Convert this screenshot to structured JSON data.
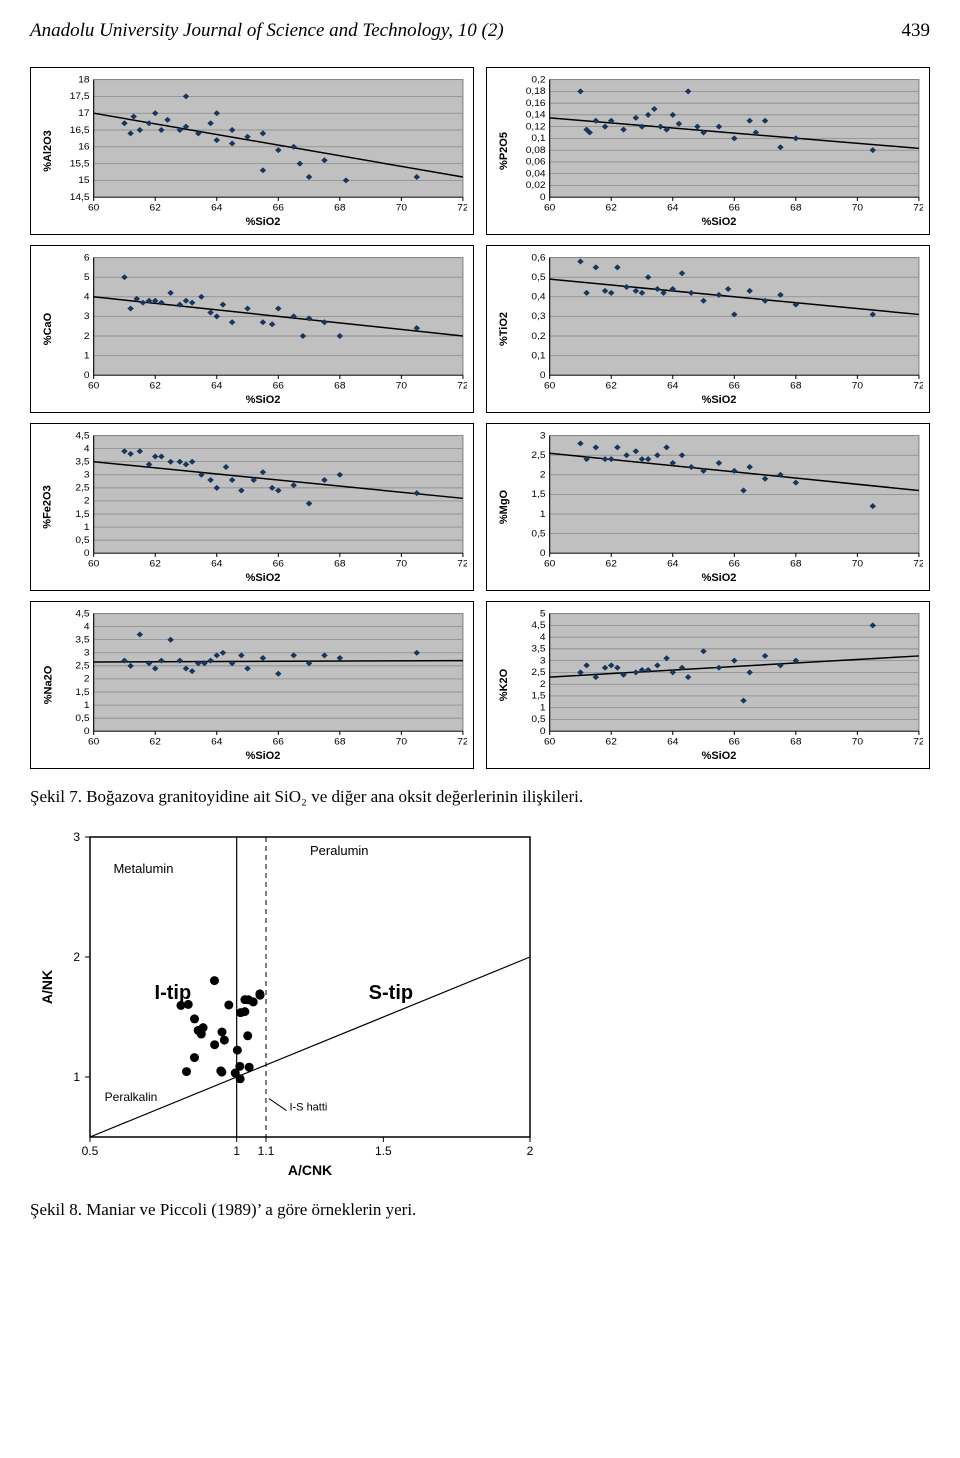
{
  "header": {
    "title": "Anadolu University Journal of Science and Technology, 10 (2)",
    "page": "439"
  },
  "layout": {
    "cols": 2,
    "panel_gap": 10
  },
  "chart_common": {
    "type": "scatter",
    "background_color": "#c0c0c0",
    "gridline_color": "#808080",
    "axis_color": "#000000",
    "marker_color": "#17365d",
    "marker_size": 3.2,
    "trend_color": "#000000",
    "trend_width": 1.6,
    "tick_font_size": 10,
    "label_font_size": 11,
    "label_font_weight": "bold",
    "xlabel": "%SiO2",
    "xlim": [
      60,
      72
    ],
    "xticks": [
      60,
      62,
      64,
      66,
      68,
      70,
      72
    ]
  },
  "charts": [
    {
      "ylabel": "%Al2O3",
      "ylim": [
        14.5,
        18
      ],
      "yticks": [
        14.5,
        15,
        15.5,
        16,
        16.5,
        17,
        17.5,
        18
      ],
      "yfmt": "dec1c",
      "trend": [
        [
          60,
          17.0
        ],
        [
          72,
          15.1
        ]
      ],
      "points": [
        [
          61.0,
          16.7
        ],
        [
          61.2,
          16.4
        ],
        [
          61.3,
          16.9
        ],
        [
          61.5,
          16.5
        ],
        [
          61.8,
          16.7
        ],
        [
          62.0,
          17.0
        ],
        [
          62.2,
          16.5
        ],
        [
          62.4,
          16.8
        ],
        [
          62.8,
          16.5
        ],
        [
          63.0,
          17.5
        ],
        [
          63.0,
          16.6
        ],
        [
          63.4,
          16.4
        ],
        [
          63.8,
          16.7
        ],
        [
          64.0,
          16.2
        ],
        [
          64.0,
          17.0
        ],
        [
          64.5,
          16.5
        ],
        [
          64.5,
          16.1
        ],
        [
          65.0,
          16.3
        ],
        [
          65.5,
          16.4
        ],
        [
          65.5,
          15.3
        ],
        [
          66.0,
          15.9
        ],
        [
          66.5,
          16.0
        ],
        [
          66.7,
          15.5
        ],
        [
          67.0,
          15.1
        ],
        [
          67.5,
          15.6
        ],
        [
          68.2,
          15.0
        ],
        [
          70.5,
          15.1
        ]
      ]
    },
    {
      "ylabel": "%P2O5",
      "ylim": [
        0,
        0.2
      ],
      "yticks": [
        0,
        0.02,
        0.04,
        0.06,
        0.08,
        0.1,
        0.12,
        0.14,
        0.16,
        0.18,
        0.2
      ],
      "yfmt": "dec2c",
      "trend": [
        [
          60,
          0.135
        ],
        [
          72,
          0.083
        ]
      ],
      "points": [
        [
          61.0,
          0.18
        ],
        [
          61.2,
          0.115
        ],
        [
          61.3,
          0.11
        ],
        [
          61.5,
          0.13
        ],
        [
          61.8,
          0.12
        ],
        [
          62.0,
          0.13
        ],
        [
          62.4,
          0.115
        ],
        [
          62.8,
          0.135
        ],
        [
          63.0,
          0.12
        ],
        [
          63.2,
          0.14
        ],
        [
          63.4,
          0.15
        ],
        [
          63.6,
          0.12
        ],
        [
          63.8,
          0.115
        ],
        [
          64.0,
          0.14
        ],
        [
          64.2,
          0.125
        ],
        [
          64.5,
          0.18
        ],
        [
          64.8,
          0.12
        ],
        [
          65.0,
          0.11
        ],
        [
          65.5,
          0.12
        ],
        [
          66.0,
          0.1
        ],
        [
          66.5,
          0.13
        ],
        [
          66.7,
          0.11
        ],
        [
          67.0,
          0.13
        ],
        [
          67.5,
          0.085
        ],
        [
          68.0,
          0.1
        ],
        [
          70.5,
          0.08
        ]
      ]
    },
    {
      "ylabel": "%CaO",
      "ylim": [
        0,
        6
      ],
      "yticks": [
        0,
        1,
        2,
        3,
        4,
        5,
        6
      ],
      "yfmt": "int",
      "trend": [
        [
          60,
          4.0
        ],
        [
          72,
          2.0
        ]
      ],
      "points": [
        [
          61.0,
          5.0
        ],
        [
          61.2,
          3.4
        ],
        [
          61.4,
          3.9
        ],
        [
          61.6,
          3.7
        ],
        [
          61.8,
          3.8
        ],
        [
          62.0,
          3.8
        ],
        [
          62.2,
          3.7
        ],
        [
          62.5,
          4.2
        ],
        [
          62.8,
          3.6
        ],
        [
          63.0,
          3.8
        ],
        [
          63.2,
          3.7
        ],
        [
          63.5,
          4.0
        ],
        [
          63.8,
          3.2
        ],
        [
          64.0,
          3.0
        ],
        [
          64.2,
          3.6
        ],
        [
          64.5,
          2.7
        ],
        [
          65.0,
          3.4
        ],
        [
          65.5,
          2.7
        ],
        [
          65.8,
          2.6
        ],
        [
          66.0,
          3.4
        ],
        [
          66.5,
          3.0
        ],
        [
          66.8,
          2.0
        ],
        [
          67.0,
          2.9
        ],
        [
          67.5,
          2.7
        ],
        [
          68.0,
          2.0
        ],
        [
          70.5,
          2.4
        ]
      ]
    },
    {
      "ylabel": "%TiO2",
      "ylim": [
        0,
        0.6
      ],
      "yticks": [
        0,
        0.1,
        0.2,
        0.3,
        0.4,
        0.5,
        0.6
      ],
      "yfmt": "dec1c",
      "trend": [
        [
          60,
          0.49
        ],
        [
          72,
          0.31
        ]
      ],
      "points": [
        [
          61.0,
          0.58
        ],
        [
          61.2,
          0.42
        ],
        [
          61.5,
          0.55
        ],
        [
          61.8,
          0.43
        ],
        [
          62.0,
          0.42
        ],
        [
          62.2,
          0.55
        ],
        [
          62.5,
          0.45
        ],
        [
          62.8,
          0.43
        ],
        [
          63.0,
          0.42
        ],
        [
          63.2,
          0.5
        ],
        [
          63.5,
          0.44
        ],
        [
          63.7,
          0.42
        ],
        [
          64.0,
          0.44
        ],
        [
          64.3,
          0.52
        ],
        [
          64.6,
          0.42
        ],
        [
          65.0,
          0.38
        ],
        [
          65.5,
          0.41
        ],
        [
          65.8,
          0.44
        ],
        [
          66.0,
          0.31
        ],
        [
          66.5,
          0.43
        ],
        [
          67.0,
          0.38
        ],
        [
          67.5,
          0.41
        ],
        [
          68.0,
          0.36
        ],
        [
          70.5,
          0.31
        ]
      ]
    },
    {
      "ylabel": "%Fe2O3",
      "ylim": [
        0,
        4.5
      ],
      "yticks": [
        0,
        0.5,
        1,
        1.5,
        2,
        2.5,
        3,
        3.5,
        4,
        4.5
      ],
      "yfmt": "dec1c",
      "trend": [
        [
          60,
          3.5
        ],
        [
          72,
          2.1
        ]
      ],
      "points": [
        [
          61.0,
          3.9
        ],
        [
          61.2,
          3.8
        ],
        [
          61.5,
          3.9
        ],
        [
          61.8,
          3.4
        ],
        [
          62.0,
          3.7
        ],
        [
          62.2,
          3.7
        ],
        [
          62.5,
          3.5
        ],
        [
          62.8,
          3.5
        ],
        [
          63.0,
          3.4
        ],
        [
          63.2,
          3.5
        ],
        [
          63.5,
          3.0
        ],
        [
          63.8,
          2.8
        ],
        [
          64.0,
          2.5
        ],
        [
          64.3,
          3.3
        ],
        [
          64.5,
          2.8
        ],
        [
          64.8,
          2.4
        ],
        [
          65.2,
          2.8
        ],
        [
          65.5,
          3.1
        ],
        [
          65.8,
          2.5
        ],
        [
          66.0,
          2.4
        ],
        [
          66.5,
          2.6
        ],
        [
          67.0,
          1.9
        ],
        [
          67.5,
          2.8
        ],
        [
          68.0,
          3.0
        ],
        [
          70.5,
          2.3
        ]
      ]
    },
    {
      "ylabel": "%MgO",
      "ylim": [
        0,
        3
      ],
      "yticks": [
        0,
        0.5,
        1,
        1.5,
        2,
        2.5,
        3
      ],
      "yfmt": "dec1c",
      "trend": [
        [
          60,
          2.55
        ],
        [
          72,
          1.6
        ]
      ],
      "points": [
        [
          61.0,
          2.8
        ],
        [
          61.2,
          2.4
        ],
        [
          61.5,
          2.7
        ],
        [
          61.8,
          2.4
        ],
        [
          62.0,
          2.4
        ],
        [
          62.2,
          2.7
        ],
        [
          62.5,
          2.5
        ],
        [
          62.8,
          2.6
        ],
        [
          63.0,
          2.4
        ],
        [
          63.2,
          2.4
        ],
        [
          63.5,
          2.5
        ],
        [
          63.8,
          2.7
        ],
        [
          64.0,
          2.3
        ],
        [
          64.3,
          2.5
        ],
        [
          64.6,
          2.2
        ],
        [
          65.0,
          2.1
        ],
        [
          65.5,
          2.3
        ],
        [
          66.0,
          2.1
        ],
        [
          66.3,
          1.6
        ],
        [
          66.5,
          2.2
        ],
        [
          67.0,
          1.9
        ],
        [
          67.5,
          2.0
        ],
        [
          68.0,
          1.8
        ],
        [
          70.5,
          1.2
        ]
      ]
    },
    {
      "ylabel": "%Na2O",
      "ylim": [
        0,
        4.5
      ],
      "yticks": [
        0,
        0.5,
        1,
        1.5,
        2,
        2.5,
        3,
        3.5,
        4,
        4.5
      ],
      "yfmt": "dec1c",
      "trend": [
        [
          60,
          2.65
        ],
        [
          72,
          2.7
        ]
      ],
      "points": [
        [
          61.0,
          2.7
        ],
        [
          61.2,
          2.5
        ],
        [
          61.5,
          3.7
        ],
        [
          61.8,
          2.6
        ],
        [
          62.0,
          2.4
        ],
        [
          62.2,
          2.7
        ],
        [
          62.5,
          3.5
        ],
        [
          62.8,
          2.7
        ],
        [
          63.0,
          2.4
        ],
        [
          63.2,
          2.3
        ],
        [
          63.4,
          2.6
        ],
        [
          63.6,
          2.6
        ],
        [
          63.8,
          2.7
        ],
        [
          64.0,
          2.9
        ],
        [
          64.2,
          3.0
        ],
        [
          64.5,
          2.6
        ],
        [
          64.8,
          2.9
        ],
        [
          65.0,
          2.4
        ],
        [
          65.5,
          2.8
        ],
        [
          66.0,
          2.2
        ],
        [
          66.5,
          2.9
        ],
        [
          67.0,
          2.6
        ],
        [
          67.5,
          2.9
        ],
        [
          68.0,
          2.8
        ],
        [
          70.5,
          3.0
        ]
      ]
    },
    {
      "ylabel": "%K2O",
      "ylim": [
        0,
        5
      ],
      "yticks": [
        0,
        0.5,
        1,
        1.5,
        2,
        2.5,
        3,
        3.5,
        4,
        4.5,
        5
      ],
      "yfmt": "dec1c",
      "trend": [
        [
          60,
          2.3
        ],
        [
          72,
          3.2
        ]
      ],
      "points": [
        [
          61.0,
          2.5
        ],
        [
          61.2,
          2.8
        ],
        [
          61.5,
          2.3
        ],
        [
          61.8,
          2.7
        ],
        [
          62.0,
          2.8
        ],
        [
          62.2,
          2.7
        ],
        [
          62.4,
          2.4
        ],
        [
          62.8,
          2.5
        ],
        [
          63.0,
          2.6
        ],
        [
          63.2,
          2.6
        ],
        [
          63.5,
          2.8
        ],
        [
          63.8,
          3.1
        ],
        [
          64.0,
          2.5
        ],
        [
          64.3,
          2.7
        ],
        [
          64.5,
          2.3
        ],
        [
          65.0,
          3.4
        ],
        [
          65.5,
          2.7
        ],
        [
          66.0,
          3.0
        ],
        [
          66.3,
          1.3
        ],
        [
          66.5,
          2.5
        ],
        [
          67.0,
          3.2
        ],
        [
          67.5,
          2.8
        ],
        [
          68.0,
          3.0
        ],
        [
          70.5,
          4.5
        ]
      ]
    }
  ],
  "captions": {
    "fig7": "Şekil 7. Boğazova granitoyidine ait SiO₂ ve diğer ana oksit değerlerinin ilişkileri.",
    "fig8": "Şekil 8. Maniar ve Piccoli (1989)’ a göre örneklerin yeri."
  },
  "fig8_diagram": {
    "type": "classification-plot",
    "xlabel": "A/CNK",
    "ylabel": "A/NK",
    "xlim": [
      0.5,
      2
    ],
    "ylim": [
      0.5,
      3
    ],
    "xticks": [
      0.5,
      1,
      1.1,
      1.5,
      2
    ],
    "yticks": [
      1,
      2,
      3
    ],
    "labels": {
      "metalumin": "Metalumin",
      "peralumin": "Peralumin",
      "peralkalin": "Peralkalin",
      "itip": "I-tip",
      "stip": "S-tip",
      "ishatti": "I-S hatti"
    },
    "vline_x": 1.0,
    "dash_x": 1.1,
    "sep_line": [
      [
        0.5,
        0.5
      ],
      [
        2,
        2
      ]
    ],
    "cluster_center": [
      1.02,
      1.6
    ],
    "cluster_n": 28,
    "colors": {
      "axis": "#000",
      "dash": "#000",
      "point": "#000",
      "bg": "#fff"
    }
  }
}
